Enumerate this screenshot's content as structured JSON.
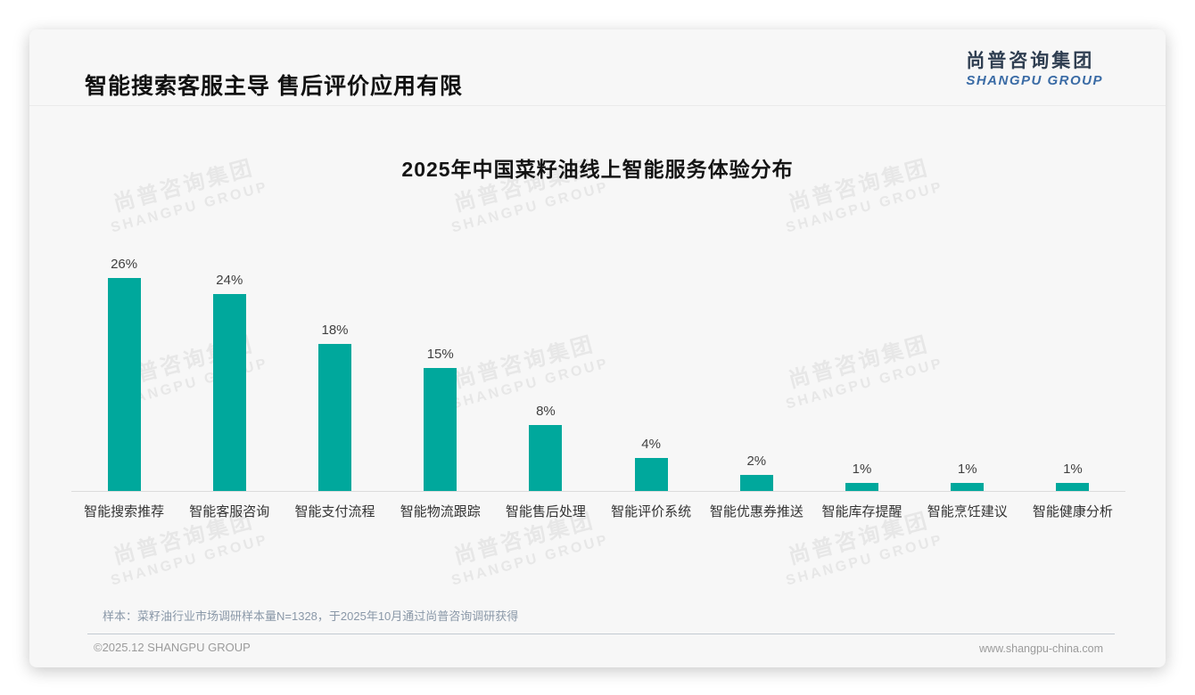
{
  "page": {
    "header_title": "智能搜索客服主导 售后评价应用有限",
    "logo": {
      "cn": "尚普咨询集团",
      "en": "SHANGPU GROUP"
    },
    "watermark": {
      "line1": "尚普咨询集团",
      "line2": "SHANGPU GROUP"
    },
    "note": "样本：菜籽油行业市场调研样本量N=1328，于2025年10月通过尚普咨询调研获得",
    "footer_left": "©2025.12 SHANGPU GROUP",
    "footer_right": "www.shangpu-china.com"
  },
  "chart_data": {
    "type": "bar",
    "title": "2025年中国菜籽油线上智能服务体验分布",
    "categories": [
      "智能搜索推荐",
      "智能客服咨询",
      "智能支付流程",
      "智能物流跟踪",
      "智能售后处理",
      "智能评价系统",
      "智能优惠券推送",
      "智能库存提醒",
      "智能烹饪建议",
      "智能健康分析"
    ],
    "values": [
      26,
      24,
      18,
      15,
      8,
      4,
      2,
      1,
      1,
      1
    ],
    "unit": "%",
    "value_labels": [
      "26%",
      "24%",
      "18%",
      "15%",
      "8%",
      "4%",
      "2%",
      "1%",
      "1%",
      "1%"
    ],
    "bar_color": "#00A89C",
    "xlabel": "",
    "ylabel": "",
    "ylim": [
      0,
      28
    ],
    "grid": false,
    "legend": false
  }
}
